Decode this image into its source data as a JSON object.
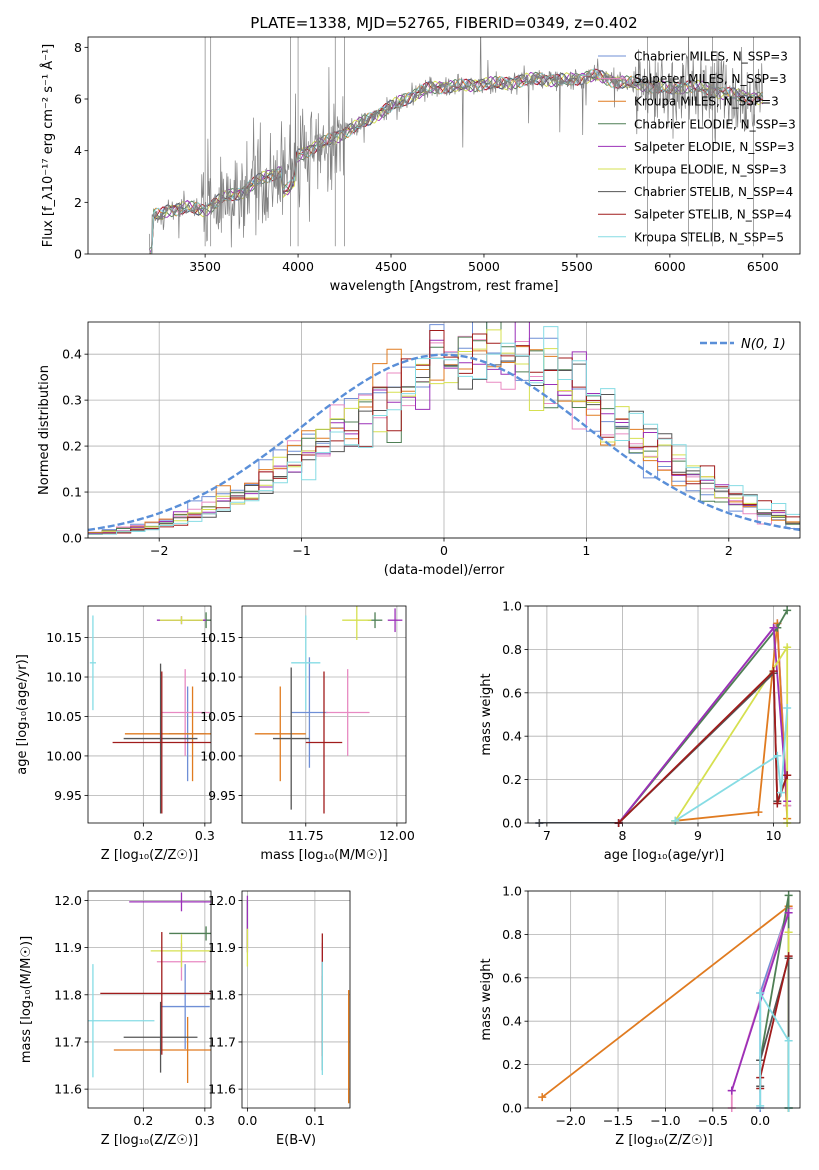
{
  "colors": {
    "chabrier_miles": "#6f8fd6",
    "salpeter_miles": "#e88ac2",
    "kroupa_miles": "#e07b20",
    "chabrier_elodie": "#4f7f55",
    "salpeter_elodie": "#9b30b8",
    "kroupa_elodie": "#d6e050",
    "chabrier_stelib": "#555555",
    "salpeter_stelib": "#a01c1c",
    "kroupa_stelib": "#86dce4",
    "gaussian": "#5a8fd8",
    "data": "#808080"
  },
  "chart_data": [
    {
      "id": "spectrum",
      "type": "line",
      "title": "PLATE=1338, MJD=52765, FIBERID=0349, z=0.402",
      "xlabel": "wavelength [Angstrom, rest frame]",
      "ylabel": "Flux [f_λ10⁻¹⁷ erg cm⁻² s⁻¹ Å⁻¹]",
      "xlim": [
        2870,
        6700
      ],
      "ylim": [
        0,
        8.4
      ],
      "xticks": [
        3500,
        4000,
        4500,
        5000,
        5500,
        6000,
        6500
      ],
      "yticks": [
        0,
        2,
        4,
        6,
        8
      ],
      "grid": false,
      "legend_position": "upper-right",
      "legend": [
        {
          "label": "Chabrier MILES, N_SSP=3",
          "color_key": "chabrier_miles"
        },
        {
          "label": "Salpeter MILES, N_SSP=3",
          "color_key": "salpeter_miles"
        },
        {
          "label": "Kroupa MILES, N_SSP=3",
          "color_key": "kroupa_miles"
        },
        {
          "label": "Chabrier ELODIE, N_SSP=3",
          "color_key": "chabrier_elodie"
        },
        {
          "label": "Salpeter ELODIE, N_SSP=3",
          "color_key": "salpeter_elodie"
        },
        {
          "label": "Kroupa ELODIE, N_SSP=3",
          "color_key": "kroupa_elodie"
        },
        {
          "label": "Chabrier STELIB, N_SSP=4",
          "color_key": "chabrier_stelib"
        },
        {
          "label": "Salpeter STELIB, N_SSP=4",
          "color_key": "salpeter_stelib"
        },
        {
          "label": "Kroupa STELIB, N_SSP=5",
          "color_key": "kroupa_stelib"
        }
      ],
      "continuum": {
        "x": [
          3200,
          3260,
          3300,
          3400,
          3500,
          3600,
          3700,
          3800,
          3900,
          3950,
          4000,
          4100,
          4200,
          4300,
          4400,
          4500,
          4600,
          4700,
          4800,
          4900,
          5000,
          5100,
          5200,
          5300,
          5400,
          5500,
          5600,
          5700,
          5800,
          5900,
          6000,
          6100,
          6200,
          6300,
          6400,
          6500
        ],
        "y": [
          0,
          1.5,
          1.7,
          1.8,
          1.7,
          2.2,
          2.4,
          2.9,
          3.2,
          3.3,
          3.8,
          4.2,
          4.5,
          4.9,
          5.3,
          5.7,
          6.1,
          6.4,
          6.5,
          6.5,
          6.6,
          6.6,
          6.7,
          6.8,
          6.7,
          6.8,
          6.9,
          6.7,
          6.6,
          6.5,
          6.4,
          6.5,
          6.4,
          6.2,
          6.1,
          6.0
        ]
      }
    },
    {
      "id": "residuals",
      "type": "histogram",
      "xlabel": "(data-model)/error",
      "ylabel": "Normed distribution",
      "xlim": [
        -2.5,
        2.5
      ],
      "ylim": [
        0,
        0.47
      ],
      "xticks": [
        -2,
        -1,
        0,
        1,
        2
      ],
      "yticks": [
        0.0,
        0.1,
        0.2,
        0.3,
        0.4
      ],
      "grid": true,
      "legend_position": "upper-right",
      "legend": [
        {
          "label": "N(0, 1)",
          "color_key": "gaussian",
          "style": "dashed"
        }
      ]
    },
    {
      "id": "age_vs_Z",
      "type": "errorbar",
      "xlabel": "Z [log₁₀(Z/Z☉)]",
      "ylabel": "age  [log₁₀(age/yr)]",
      "xlim": [
        0.11,
        0.31
      ],
      "ylim": [
        9.915,
        10.19
      ],
      "xticks": [
        0.2,
        0.3
      ],
      "yticks": [
        9.95,
        10.0,
        10.05,
        10.1,
        10.15
      ],
      "grid": true,
      "points": [
        {
          "color_key": "chabrier_miles",
          "x": 0.272,
          "xerr": 0.03,
          "y": 10.028,
          "yerr": 0.06
        },
        {
          "color_key": "salpeter_miles",
          "x": 0.268,
          "xerr": 0.04,
          "y": 10.055,
          "yerr": 0.055
        },
        {
          "color_key": "kroupa_miles",
          "x": 0.28,
          "xerr": 0.11,
          "y": 10.028,
          "yerr": 0.06
        },
        {
          "color_key": "chabrier_elodie",
          "x": 0.302,
          "xerr": 0.03,
          "y": 10.172,
          "yerr": 0.01
        },
        {
          "color_key": "salpeter_elodie",
          "x": 0.262,
          "xerr": 0.04,
          "y": 10.172,
          "yerr": 0.005
        },
        {
          "color_key": "kroupa_elodie",
          "x": 0.262,
          "xerr": 0.035,
          "y": 10.172,
          "yerr": 0.005
        },
        {
          "color_key": "chabrier_stelib",
          "x": 0.228,
          "xerr": 0.06,
          "y": 10.022,
          "yerr": 0.095
        },
        {
          "color_key": "salpeter_stelib",
          "x": 0.23,
          "xerr": 0.08,
          "y": 10.017,
          "yerr": 0.09
        },
        {
          "color_key": "kroupa_stelib",
          "x": 0.118,
          "xerr": 0.005,
          "y": 10.118,
          "yerr": 0.06
        }
      ]
    },
    {
      "id": "age_vs_mass",
      "type": "errorbar",
      "xlabel": "mass [log₁₀(M/M☉)]",
      "ylabel": "",
      "xlim": [
        11.575,
        12.025
      ],
      "ylim": [
        9.915,
        10.19
      ],
      "xticks": [
        11.75,
        12.0
      ],
      "yticks": [
        9.95,
        10.0,
        10.05,
        10.1,
        10.15
      ],
      "grid": true,
      "points": [
        {
          "color_key": "chabrier_miles",
          "x": 11.76,
          "xerr": 0.05,
          "y": 10.055,
          "yerr": 0.07
        },
        {
          "color_key": "salpeter_miles",
          "x": 11.865,
          "xerr": 0.06,
          "y": 10.055,
          "yerr": 0.055
        },
        {
          "color_key": "kroupa_miles",
          "x": 11.68,
          "xerr": 0.07,
          "y": 10.028,
          "yerr": 0.06
        },
        {
          "color_key": "chabrier_elodie",
          "x": 11.94,
          "xerr": 0.02,
          "y": 10.172,
          "yerr": 0.01
        },
        {
          "color_key": "salpeter_elodie",
          "x": 11.995,
          "xerr": 0.02,
          "y": 10.172,
          "yerr": 0.015
        },
        {
          "color_key": "kroupa_elodie",
          "x": 11.89,
          "xerr": 0.04,
          "y": 10.172,
          "yerr": 0.025
        },
        {
          "color_key": "chabrier_stelib",
          "x": 11.71,
          "xerr": 0.05,
          "y": 10.022,
          "yerr": 0.09
        },
        {
          "color_key": "salpeter_stelib",
          "x": 11.8,
          "xerr": 0.05,
          "y": 10.017,
          "yerr": 0.09
        },
        {
          "color_key": "kroupa_stelib",
          "x": 11.75,
          "xerr": 0.04,
          "y": 10.118,
          "yerr": 0.06
        }
      ]
    },
    {
      "id": "mass_weight_vs_age",
      "type": "line",
      "xlabel": "age  [log₁₀(age/yr)]",
      "ylabel": "mass weight",
      "xlim": [
        6.75,
        10.35
      ],
      "ylim": [
        0,
        1
      ],
      "xticks": [
        7,
        8,
        9,
        10
      ],
      "yticks": [
        0.0,
        0.2,
        0.4,
        0.6,
        0.8,
        1.0
      ],
      "grid": true,
      "series": [
        {
          "color_key": "chabrier_miles",
          "x": [
            6.9,
            7.95,
            10.05,
            10.18
          ],
          "y": [
            0.0,
            0.0,
            0.92,
            0.08
          ]
        },
        {
          "color_key": "salpeter_miles",
          "x": [
            7.95,
            10.05,
            10.18
          ],
          "y": [
            0.0,
            0.92,
            0.08
          ]
        },
        {
          "color_key": "kroupa_miles",
          "x": [
            8.7,
            9.8,
            10.05,
            10.18
          ],
          "y": [
            0.01,
            0.05,
            0.92,
            0.02
          ]
        },
        {
          "color_key": "chabrier_elodie",
          "x": [
            7.95,
            10.05,
            10.18
          ],
          "y": [
            0.0,
            0.9,
            0.98
          ]
        },
        {
          "color_key": "salpeter_elodie",
          "x": [
            7.95,
            10.0,
            10.18
          ],
          "y": [
            0.0,
            0.9,
            0.1
          ]
        },
        {
          "color_key": "kroupa_elodie",
          "x": [
            8.7,
            10.18,
            10.18
          ],
          "y": [
            0.01,
            0.81,
            0.0
          ]
        },
        {
          "color_key": "chabrier_stelib",
          "x": [
            6.9,
            7.95,
            10.0,
            10.05,
            10.18
          ],
          "y": [
            0.0,
            0.0,
            0.69,
            0.1,
            0.22
          ]
        },
        {
          "color_key": "salpeter_stelib",
          "x": [
            7.95,
            10.0,
            10.05,
            10.18
          ],
          "y": [
            0.0,
            0.7,
            0.09,
            0.22
          ]
        },
        {
          "color_key": "kroupa_stelib",
          "x": [
            8.7,
            10.05,
            10.1,
            10.18
          ],
          "y": [
            0.01,
            0.31,
            0.14,
            0.53
          ]
        }
      ]
    },
    {
      "id": "mass_vs_Z",
      "type": "errorbar",
      "xlabel": "Z [log₁₀(Z/Z☉)]",
      "ylabel": "mass [log₁₀(M/M☉)]",
      "xlim": [
        0.11,
        0.31
      ],
      "ylim": [
        11.56,
        12.02
      ],
      "xticks": [
        0.2,
        0.3
      ],
      "yticks": [
        11.6,
        11.7,
        11.8,
        11.9,
        12.0
      ],
      "grid": true,
      "points": [
        {
          "color_key": "chabrier_miles",
          "x": 0.268,
          "xerr": 0.04,
          "y": 11.775,
          "yerr": 0.09
        },
        {
          "color_key": "salpeter_miles",
          "x": 0.262,
          "xerr": 0.04,
          "y": 11.87,
          "yerr": 0.04
        },
        {
          "color_key": "kroupa_miles",
          "x": 0.272,
          "xerr": 0.12,
          "y": 11.683,
          "yerr": 0.07
        },
        {
          "color_key": "chabrier_elodie",
          "x": 0.302,
          "xerr": 0.06,
          "y": 11.93,
          "yerr": 0.015
        },
        {
          "color_key": "salpeter_elodie",
          "x": 0.262,
          "xerr": 0.085,
          "y": 11.997,
          "yerr": 0.02
        },
        {
          "color_key": "kroupa_elodie",
          "x": 0.262,
          "xerr": 0.05,
          "y": 11.893,
          "yerr": 0.035
        },
        {
          "color_key": "chabrier_stelib",
          "x": 0.228,
          "xerr": 0.06,
          "y": 11.71,
          "yerr": 0.075
        },
        {
          "color_key": "salpeter_stelib",
          "x": 0.23,
          "xerr": 0.1,
          "y": 11.803,
          "yerr": 0.13
        },
        {
          "color_key": "kroupa_stelib",
          "x": 0.118,
          "xerr": 0.1,
          "y": 11.745,
          "yerr": 0.12
        }
      ]
    },
    {
      "id": "mass_vs_ebv",
      "type": "errorbar",
      "xlabel": "E(B-V)",
      "ylabel": "",
      "xlim": [
        -0.008,
        0.152
      ],
      "ylim": [
        11.56,
        12.02
      ],
      "xticks": [
        0.0,
        0.1
      ],
      "yticks": [
        11.6,
        11.7,
        11.8,
        11.9,
        12.0
      ],
      "grid": true,
      "points": [
        {
          "color_key": "chabrier_miles",
          "x": 0.111,
          "xerr": 0,
          "y": 11.775,
          "yerr": 0.09
        },
        {
          "color_key": "salpeter_miles",
          "x": 0.111,
          "xerr": 0,
          "y": 11.87,
          "yerr": 0.04
        },
        {
          "color_key": "kroupa_miles",
          "x": 0.15,
          "xerr": 0,
          "y": 11.69,
          "yerr": 0.12
        },
        {
          "color_key": "chabrier_elodie",
          "x": 0.0,
          "xerr": 0,
          "y": 11.95,
          "yerr": 0.05
        },
        {
          "color_key": "salpeter_elodie",
          "x": 0.0,
          "xerr": 0,
          "y": 11.95,
          "yerr": 0.06
        },
        {
          "color_key": "kroupa_elodie",
          "x": 0.0,
          "xerr": 0,
          "y": 11.9,
          "yerr": 0.04
        },
        {
          "color_key": "chabrier_stelib",
          "x": 0.111,
          "xerr": 0,
          "y": 11.74,
          "yerr": 0.1
        },
        {
          "color_key": "salpeter_stelib",
          "x": 0.111,
          "xerr": 0,
          "y": 11.8,
          "yerr": 0.13
        },
        {
          "color_key": "kroupa_stelib",
          "x": 0.111,
          "xerr": 0,
          "y": 11.75,
          "yerr": 0.12
        }
      ]
    },
    {
      "id": "mass_weight_vs_Z",
      "type": "line",
      "xlabel": "Z [log₁₀(Z/Z☉)]",
      "ylabel": "mass weight",
      "xlim": [
        -2.45,
        0.42
      ],
      "ylim": [
        0,
        1
      ],
      "xticks": [
        -2.0,
        -1.5,
        -1.0,
        -0.5,
        0.0
      ],
      "yticks": [
        0.0,
        0.2,
        0.4,
        0.6,
        0.8,
        1.0
      ],
      "grid": true,
      "series": [
        {
          "color_key": "chabrier_miles",
          "x": [
            0.0,
            0.0,
            0.3
          ],
          "y": [
            0.0,
            0.53,
            0.92
          ]
        },
        {
          "color_key": "salpeter_miles",
          "x": [
            -0.3,
            -0.3,
            0.3
          ],
          "y": [
            0.0,
            0.08,
            0.92
          ]
        },
        {
          "color_key": "kroupa_miles",
          "x": [
            -2.3,
            0.3
          ],
          "y": [
            0.05,
            0.93
          ]
        },
        {
          "color_key": "chabrier_elodie",
          "x": [
            0.0,
            0.3,
            0.3
          ],
          "y": [
            0.22,
            0.98,
            0.0
          ]
        },
        {
          "color_key": "salpeter_elodie",
          "x": [
            -0.3,
            0.3
          ],
          "y": [
            0.08,
            0.9
          ]
        },
        {
          "color_key": "kroupa_elodie",
          "x": [
            0.3,
            0.3,
            0.3
          ],
          "y": [
            0.0,
            0.81,
            0.0
          ]
        },
        {
          "color_key": "chabrier_stelib",
          "x": [
            0.0,
            0.0,
            0.3,
            0.3
          ],
          "y": [
            0.1,
            0.22,
            0.69,
            0.0
          ]
        },
        {
          "color_key": "salpeter_stelib",
          "x": [
            0.0,
            0.0,
            0.3
          ],
          "y": [
            0.09,
            0.14,
            0.7
          ]
        },
        {
          "color_key": "kroupa_stelib",
          "x": [
            0.0,
            0.0,
            0.3,
            0.3
          ],
          "y": [
            0.01,
            0.53,
            0.31,
            0.0
          ]
        }
      ]
    }
  ]
}
